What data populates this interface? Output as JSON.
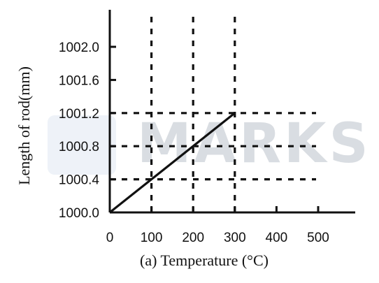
{
  "chart_data": {
    "type": "line",
    "xlabel": "(a) Temperature (°C)",
    "ylabel": "Length of rod(mm)",
    "xlim": [
      0,
      600
    ],
    "ylim": [
      1000.0,
      1002.4
    ],
    "x_ticks": [
      0,
      100,
      200,
      300,
      400,
      500
    ],
    "x_tick_labels": [
      "0",
      "100",
      "200",
      "300",
      "400",
      "500"
    ],
    "y_ticks": [
      1000.0,
      1000.4,
      1000.8,
      1001.2,
      1001.6,
      1002.0
    ],
    "y_tick_labels": [
      "1000.0",
      "1000.4",
      "1000.8",
      "1001.2",
      "1001.6",
      "1002.0"
    ],
    "series": [
      {
        "x": [
          0,
          300
        ],
        "y": [
          1000.0,
          1001.2
        ]
      }
    ],
    "vertical_guides_x": [
      100,
      200,
      300
    ],
    "horizontal_guides_y": [
      1000.4,
      1000.8,
      1001.2
    ],
    "grid": false,
    "watermark": "MARKS",
    "colors": {
      "line": "#111111",
      "guides": "#111111",
      "watermark": "#d9dde2",
      "watermark_icon": "#eef2f8"
    }
  }
}
